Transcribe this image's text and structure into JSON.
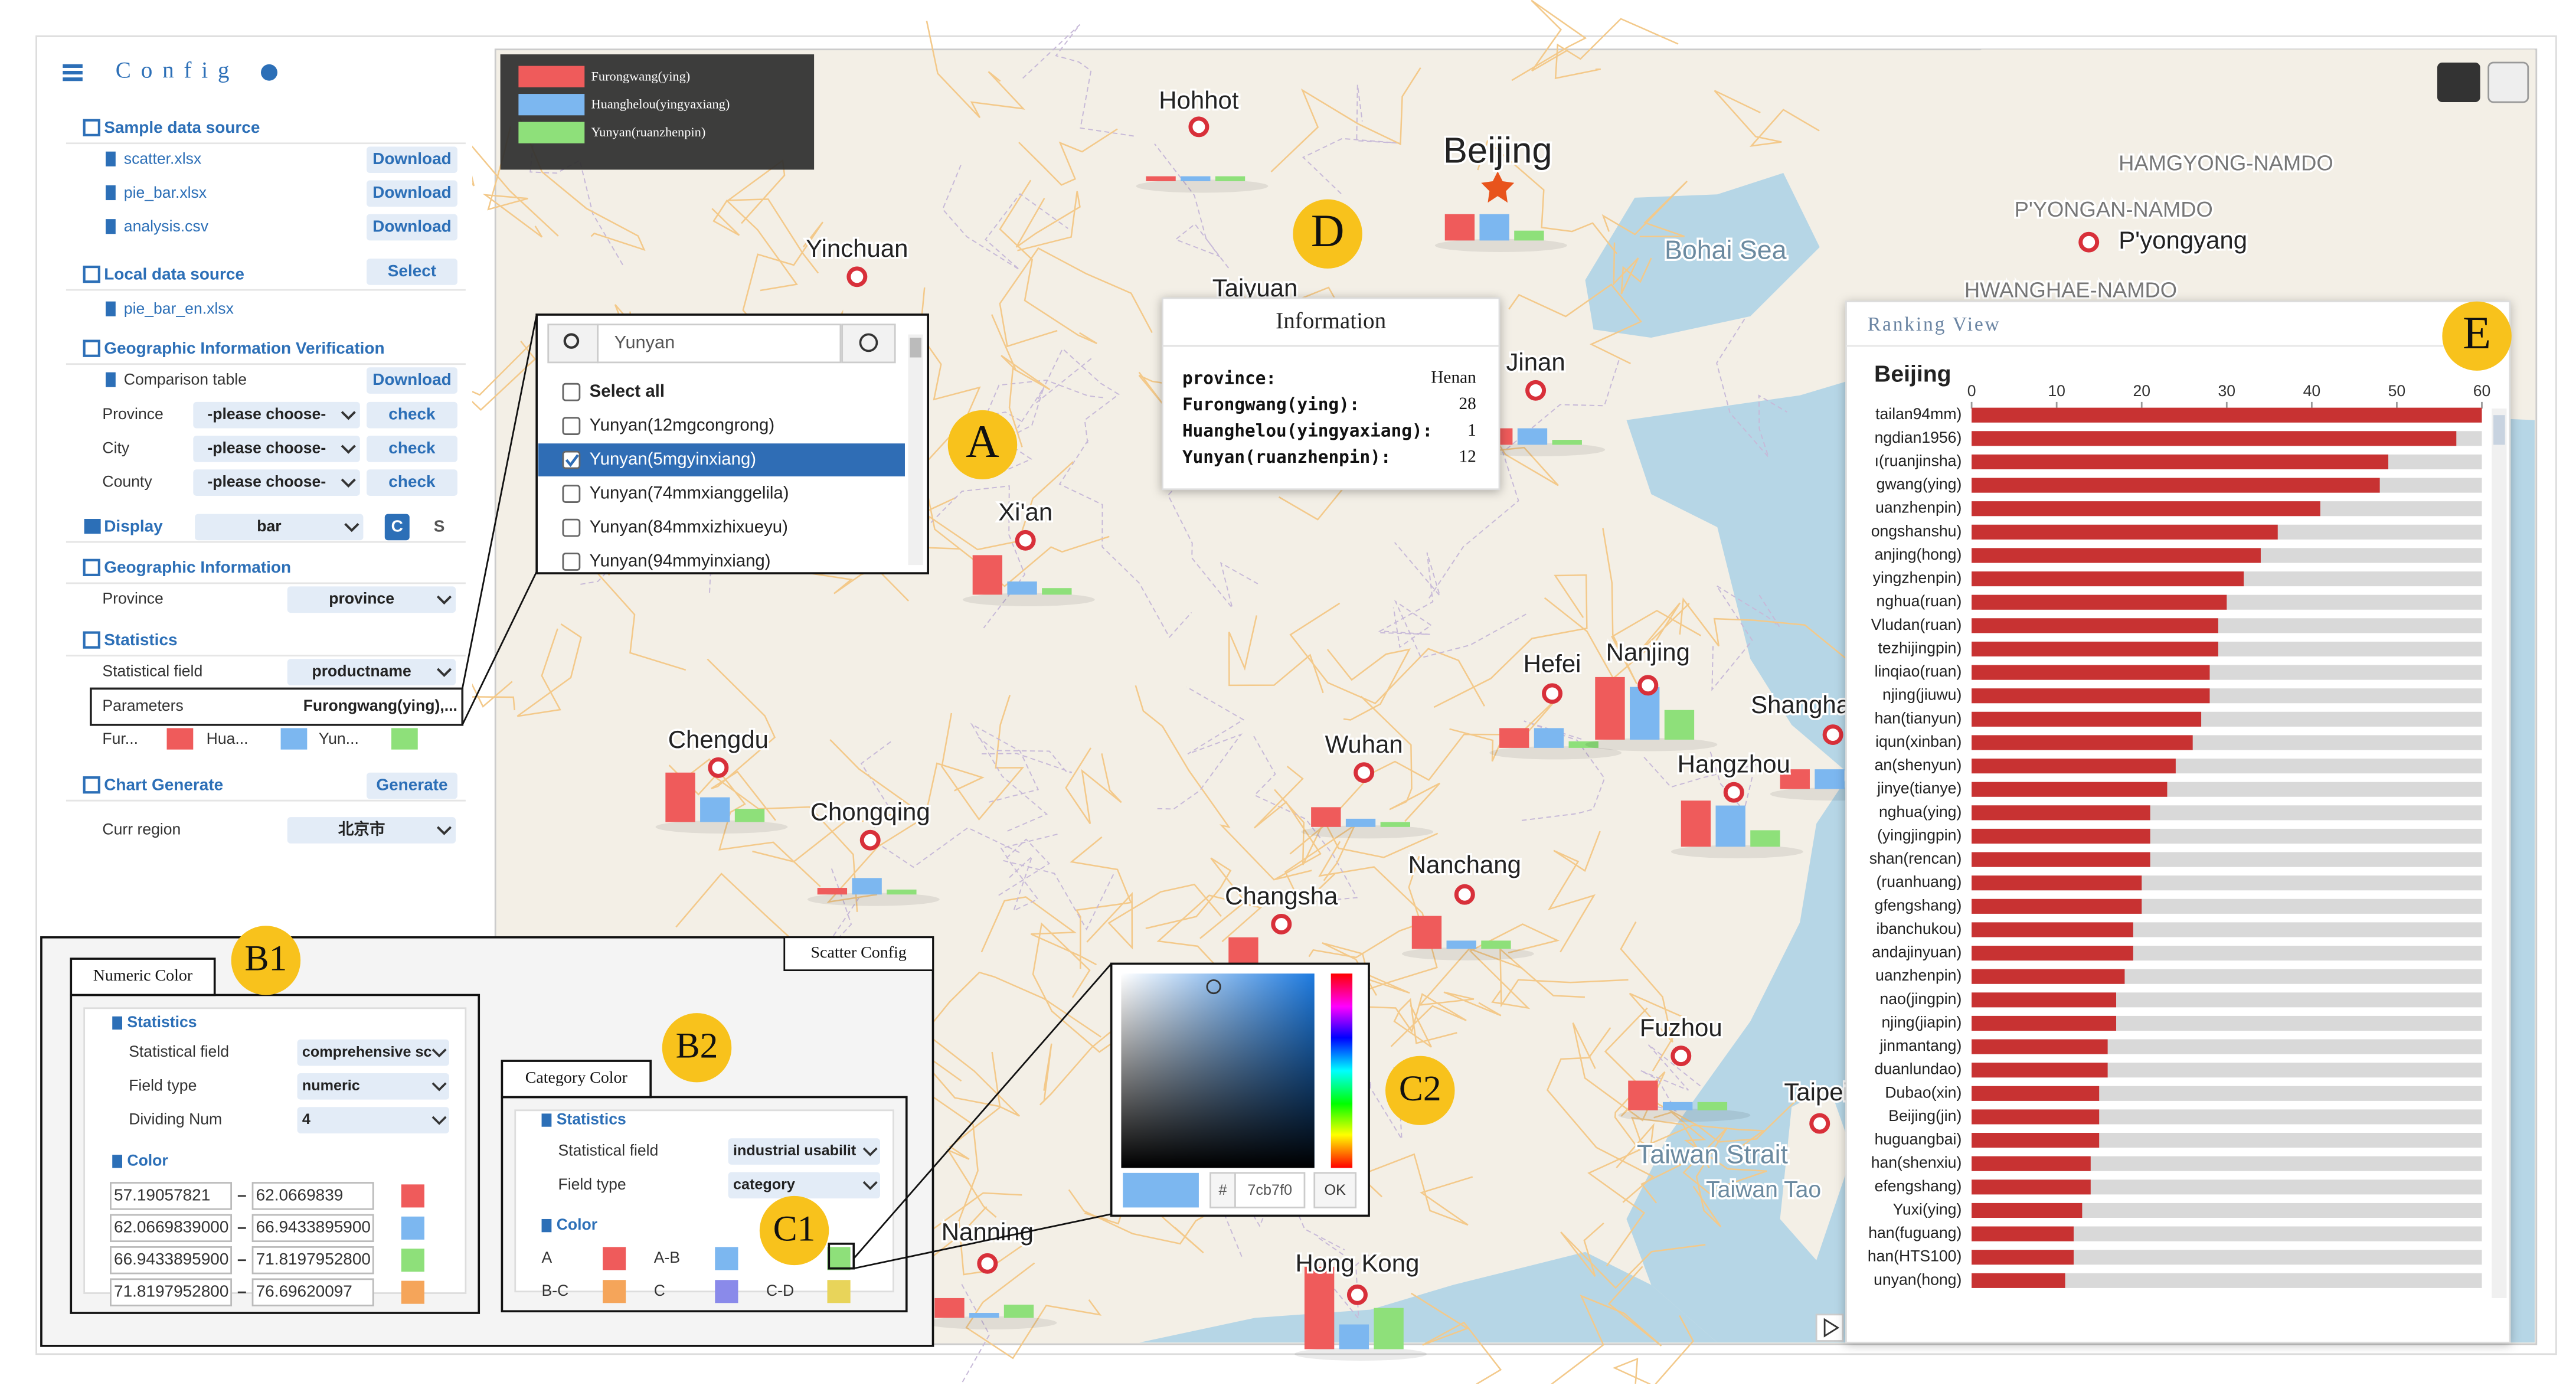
{
  "config": {
    "title": "Config",
    "sample_source": {
      "title": "Sample data source",
      "files": [
        "scatter.xlsx",
        "pie_bar.xlsx",
        "analysis.csv"
      ],
      "button": "Download"
    },
    "local_source": {
      "title": "Local data source",
      "button": "Select",
      "file": "pie_bar_en.xlsx"
    },
    "geo_verify": {
      "title": "Geographic Information Verification",
      "comparison": "Comparison table",
      "button": "Download",
      "rows": [
        {
          "label": "Province",
          "select": "-please choose-",
          "button": "check"
        },
        {
          "label": "City",
          "select": "-please choose-",
          "button": "check"
        },
        {
          "label": "County",
          "select": "-please choose-",
          "button": "check"
        }
      ]
    },
    "display": {
      "label": "Display",
      "select": "bar",
      "buttons": [
        "C",
        "S"
      ]
    },
    "geo_info": {
      "title": "Geographic Information",
      "label": "Province",
      "select": "province"
    },
    "statistics": {
      "title": "Statistics",
      "field_label": "Statistical field",
      "field": "productname",
      "params_label": "Parameters",
      "params": "Furongwang(ying),...",
      "legend": [
        {
          "name": "Fur...",
          "color": "#ef5b5b"
        },
        {
          "name": "Hua...",
          "color": "#7cb7f0"
        },
        {
          "name": "Yun...",
          "color": "#8ee07a"
        }
      ]
    },
    "chart_generate": {
      "title": "Chart Generate",
      "button": "Generate",
      "region_label": "Curr region",
      "region": "北京市"
    }
  },
  "map": {
    "legend": [
      {
        "name": "Furongwang(ying)",
        "color": "#ef5b5b"
      },
      {
        "name": "Huanghelou(yingyaxiang)",
        "color": "#7cb7f0"
      },
      {
        "name": "Yunyan(ruanzhenpin)",
        "color": "#8ee07a"
      }
    ],
    "places": [
      {
        "name": "Hohhot",
        "bars": [
          3,
          3,
          3
        ]
      },
      {
        "name": "Beijing",
        "bars": [
          16,
          16,
          6
        ]
      },
      {
        "name": "Yinchuan"
      },
      {
        "name": "Taiyuan"
      },
      {
        "name": "Jinan",
        "bars": [
          10,
          10,
          3
        ]
      },
      {
        "name": "Xi'an",
        "bars": [
          24,
          8,
          4
        ]
      },
      {
        "name": "Hefei",
        "bars": [
          12,
          12,
          4
        ]
      },
      {
        "name": "Nanjing",
        "bars": [
          38,
          32,
          18
        ]
      },
      {
        "name": "Shanghai",
        "bars": [
          12,
          12,
          10
        ]
      },
      {
        "name": "Chengdu",
        "bars": [
          30,
          15,
          8
        ]
      },
      {
        "name": "Wuhan",
        "bars": [
          12,
          5,
          3
        ]
      },
      {
        "name": "Chongqing",
        "bars": [
          4,
          10,
          3
        ]
      },
      {
        "name": "Hangzhou",
        "bars": [
          28,
          25,
          10
        ]
      },
      {
        "name": "Nanchang",
        "bars": [
          20,
          5,
          5
        ]
      },
      {
        "name": "Changsha",
        "bars": [
          25,
          8,
          5
        ]
      },
      {
        "name": "Fuzhou",
        "bars": [
          18,
          5,
          5
        ]
      },
      {
        "name": "Taipei"
      },
      {
        "name": "Nanning",
        "bars": [
          12,
          3,
          8
        ]
      },
      {
        "name": "Hong Kong",
        "bars": [
          50,
          15,
          25
        ]
      },
      {
        "name": "Bohai Sea"
      },
      {
        "name": "HAMGYONG-NAMDO"
      },
      {
        "name": "P'YONGAN-NAMDO"
      },
      {
        "name": "P'yongyang"
      },
      {
        "name": "HWANGHAE-NAMDO"
      },
      {
        "name": "Taiwan Strait"
      },
      {
        "name": "Taiwan Tao"
      }
    ]
  },
  "dropdown": {
    "search": "Yunyan",
    "items": [
      "Select all",
      "Yunyan(12mgcongrong)",
      "Yunyan(5mgyinxiang)",
      "Yunyan(74mmxianggelila)",
      "Yunyan(84mmxizhixueyu)",
      "Yunyan(94mmyinxiang)"
    ],
    "checked": 2
  },
  "information": {
    "title": "Information",
    "rows": [
      {
        "label": "province:",
        "value": "Henan"
      },
      {
        "label": "Furongwang(ying):",
        "value": 28
      },
      {
        "label": "Huanghelou(yingyaxiang):",
        "value": 1
      },
      {
        "label": "Yunyan(ruanzhenpin):",
        "value": 12
      }
    ]
  },
  "scatter_config": {
    "title": "Scatter Config",
    "numeric": {
      "tab": "Numeric Color",
      "section": "Statistics",
      "rows": [
        {
          "label": "Statistical field",
          "select": "comprehensive sc"
        },
        {
          "label": "Field type",
          "select": "numeric"
        },
        {
          "label": "Dividing Num",
          "select": "4"
        }
      ],
      "color_title": "Color",
      "ranges": [
        {
          "min": "57.19057821",
          "max": "62.0669839",
          "color": "#ef5b5b"
        },
        {
          "min": "62.0669839000",
          "max": "66.9433895900",
          "color": "#7cb7f0"
        },
        {
          "min": "66.9433895900",
          "max": "71.8197952800",
          "color": "#8ee07a"
        },
        {
          "min": "71.8197952800",
          "max": "76.69620097",
          "color": "#f5a55a"
        }
      ]
    },
    "category": {
      "tab": "Category Color",
      "section": "Statistics",
      "rows": [
        {
          "label": "Statistical field",
          "select": "industrial usabilit"
        },
        {
          "label": "Field type",
          "select": "category"
        }
      ],
      "color_title": "Color",
      "items": [
        {
          "name": "A",
          "color": "#ef5b5b"
        },
        {
          "name": "A-B",
          "color": "#7cb7f0"
        },
        {
          "color": "#8ee07a"
        },
        {
          "name": "B-C",
          "color": "#f5a55a"
        },
        {
          "name": "C",
          "color": "#8a8aea"
        },
        {
          "name": "C-D",
          "color": "#e8d45a"
        }
      ]
    }
  },
  "color_picker": {
    "hash": "#",
    "hex": "7cb7f0",
    "ok": "OK",
    "color": "#7cb7f0"
  },
  "annotations": [
    "A",
    "B1",
    "B2",
    "C1",
    "C2",
    "D",
    "E"
  ],
  "ranking": {
    "title": "Ranking View",
    "region": "Beijing",
    "color": "#c83232",
    "xlim": [
      0,
      60
    ],
    "xticks": [
      0,
      10,
      20,
      30,
      40,
      50,
      60
    ],
    "categories": [
      "tailan94mm)",
      "ngdian1956)",
      "ı(ruanjinsha)",
      "gwang(ying)",
      "uanzhenpin)",
      "ongshanshu)",
      "anjing(hong)",
      "yingzhenpin)",
      "nghua(ruan)",
      "Vludan(ruan)",
      "tezhijingpin)",
      "linqiao(ruan)",
      "njing(jiuwu)",
      "han(tianyun)",
      "iqun(xinban)",
      "an(shenyun)",
      "jinye(tianye)",
      "nghua(ying)",
      "(yingjingpin)",
      "shan(rencan)",
      "(ruanhuang)",
      "gfengshang)",
      "ibanchukou)",
      "andajinyuan)",
      "uanzhenpin)",
      "nao(jingpin)",
      "njing(jiapin)",
      "jinmantang)",
      "duanlundao)",
      "Dubao(xin)",
      "Beijing(jin)",
      "huguangbai)",
      "han(shenxiu)",
      "efengshang)",
      "Yuxi(ying)",
      "han(fuguang)",
      "han(HTS100)",
      "unyan(hong)"
    ],
    "values": [
      60,
      57,
      49,
      48,
      41,
      36,
      34,
      32,
      30,
      29,
      29,
      28,
      28,
      27,
      26,
      24,
      23,
      21,
      21,
      21,
      20,
      20,
      19,
      19,
      18,
      17,
      17,
      16,
      16,
      15,
      15,
      15,
      14,
      14,
      13,
      12,
      12,
      11
    ]
  }
}
